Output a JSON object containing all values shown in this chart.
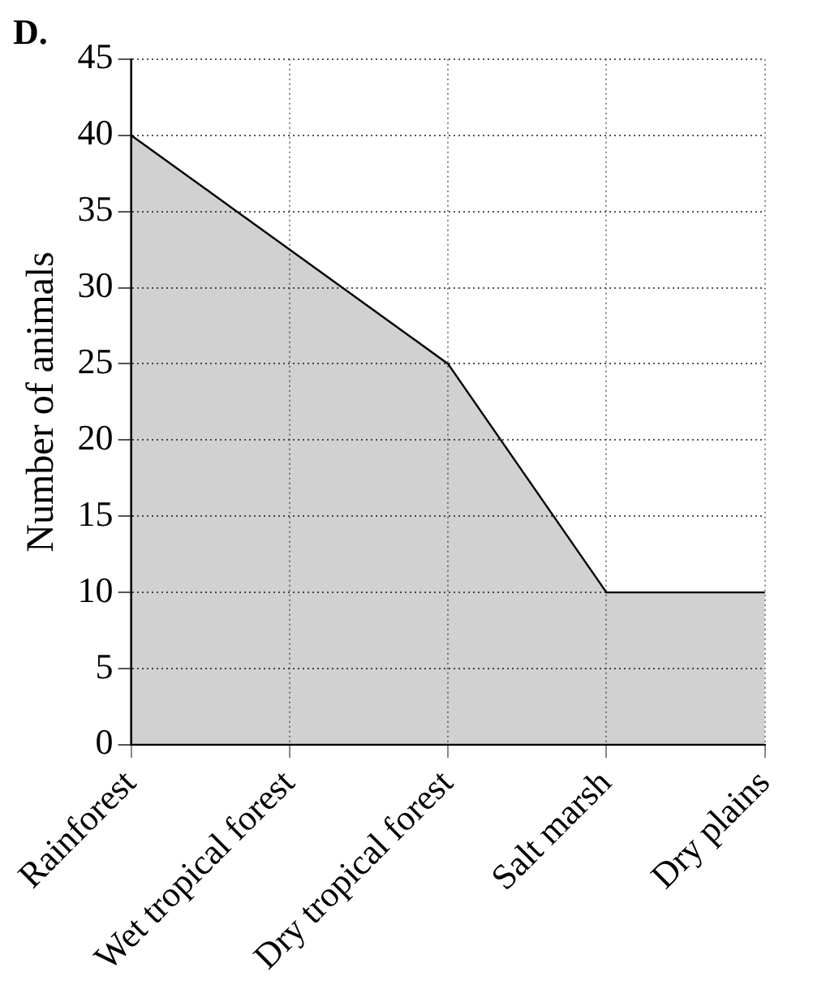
{
  "chart_data": {
    "type": "area",
    "title": "D.",
    "ylabel": "Number of animals",
    "categories": [
      "Rainforest",
      "Wet tropical forest",
      "Dry tropical forest",
      "Salt marsh",
      "Dry plains"
    ],
    "series": [
      {
        "color": "#000000",
        "values": [
          40,
          32.5,
          25,
          10,
          10
        ]
      }
    ],
    "ylim": [
      0,
      45
    ],
    "yticks": [
      0,
      5,
      10,
      15,
      20,
      25,
      30,
      35,
      40,
      45
    ],
    "grid": true,
    "legend": false
  }
}
